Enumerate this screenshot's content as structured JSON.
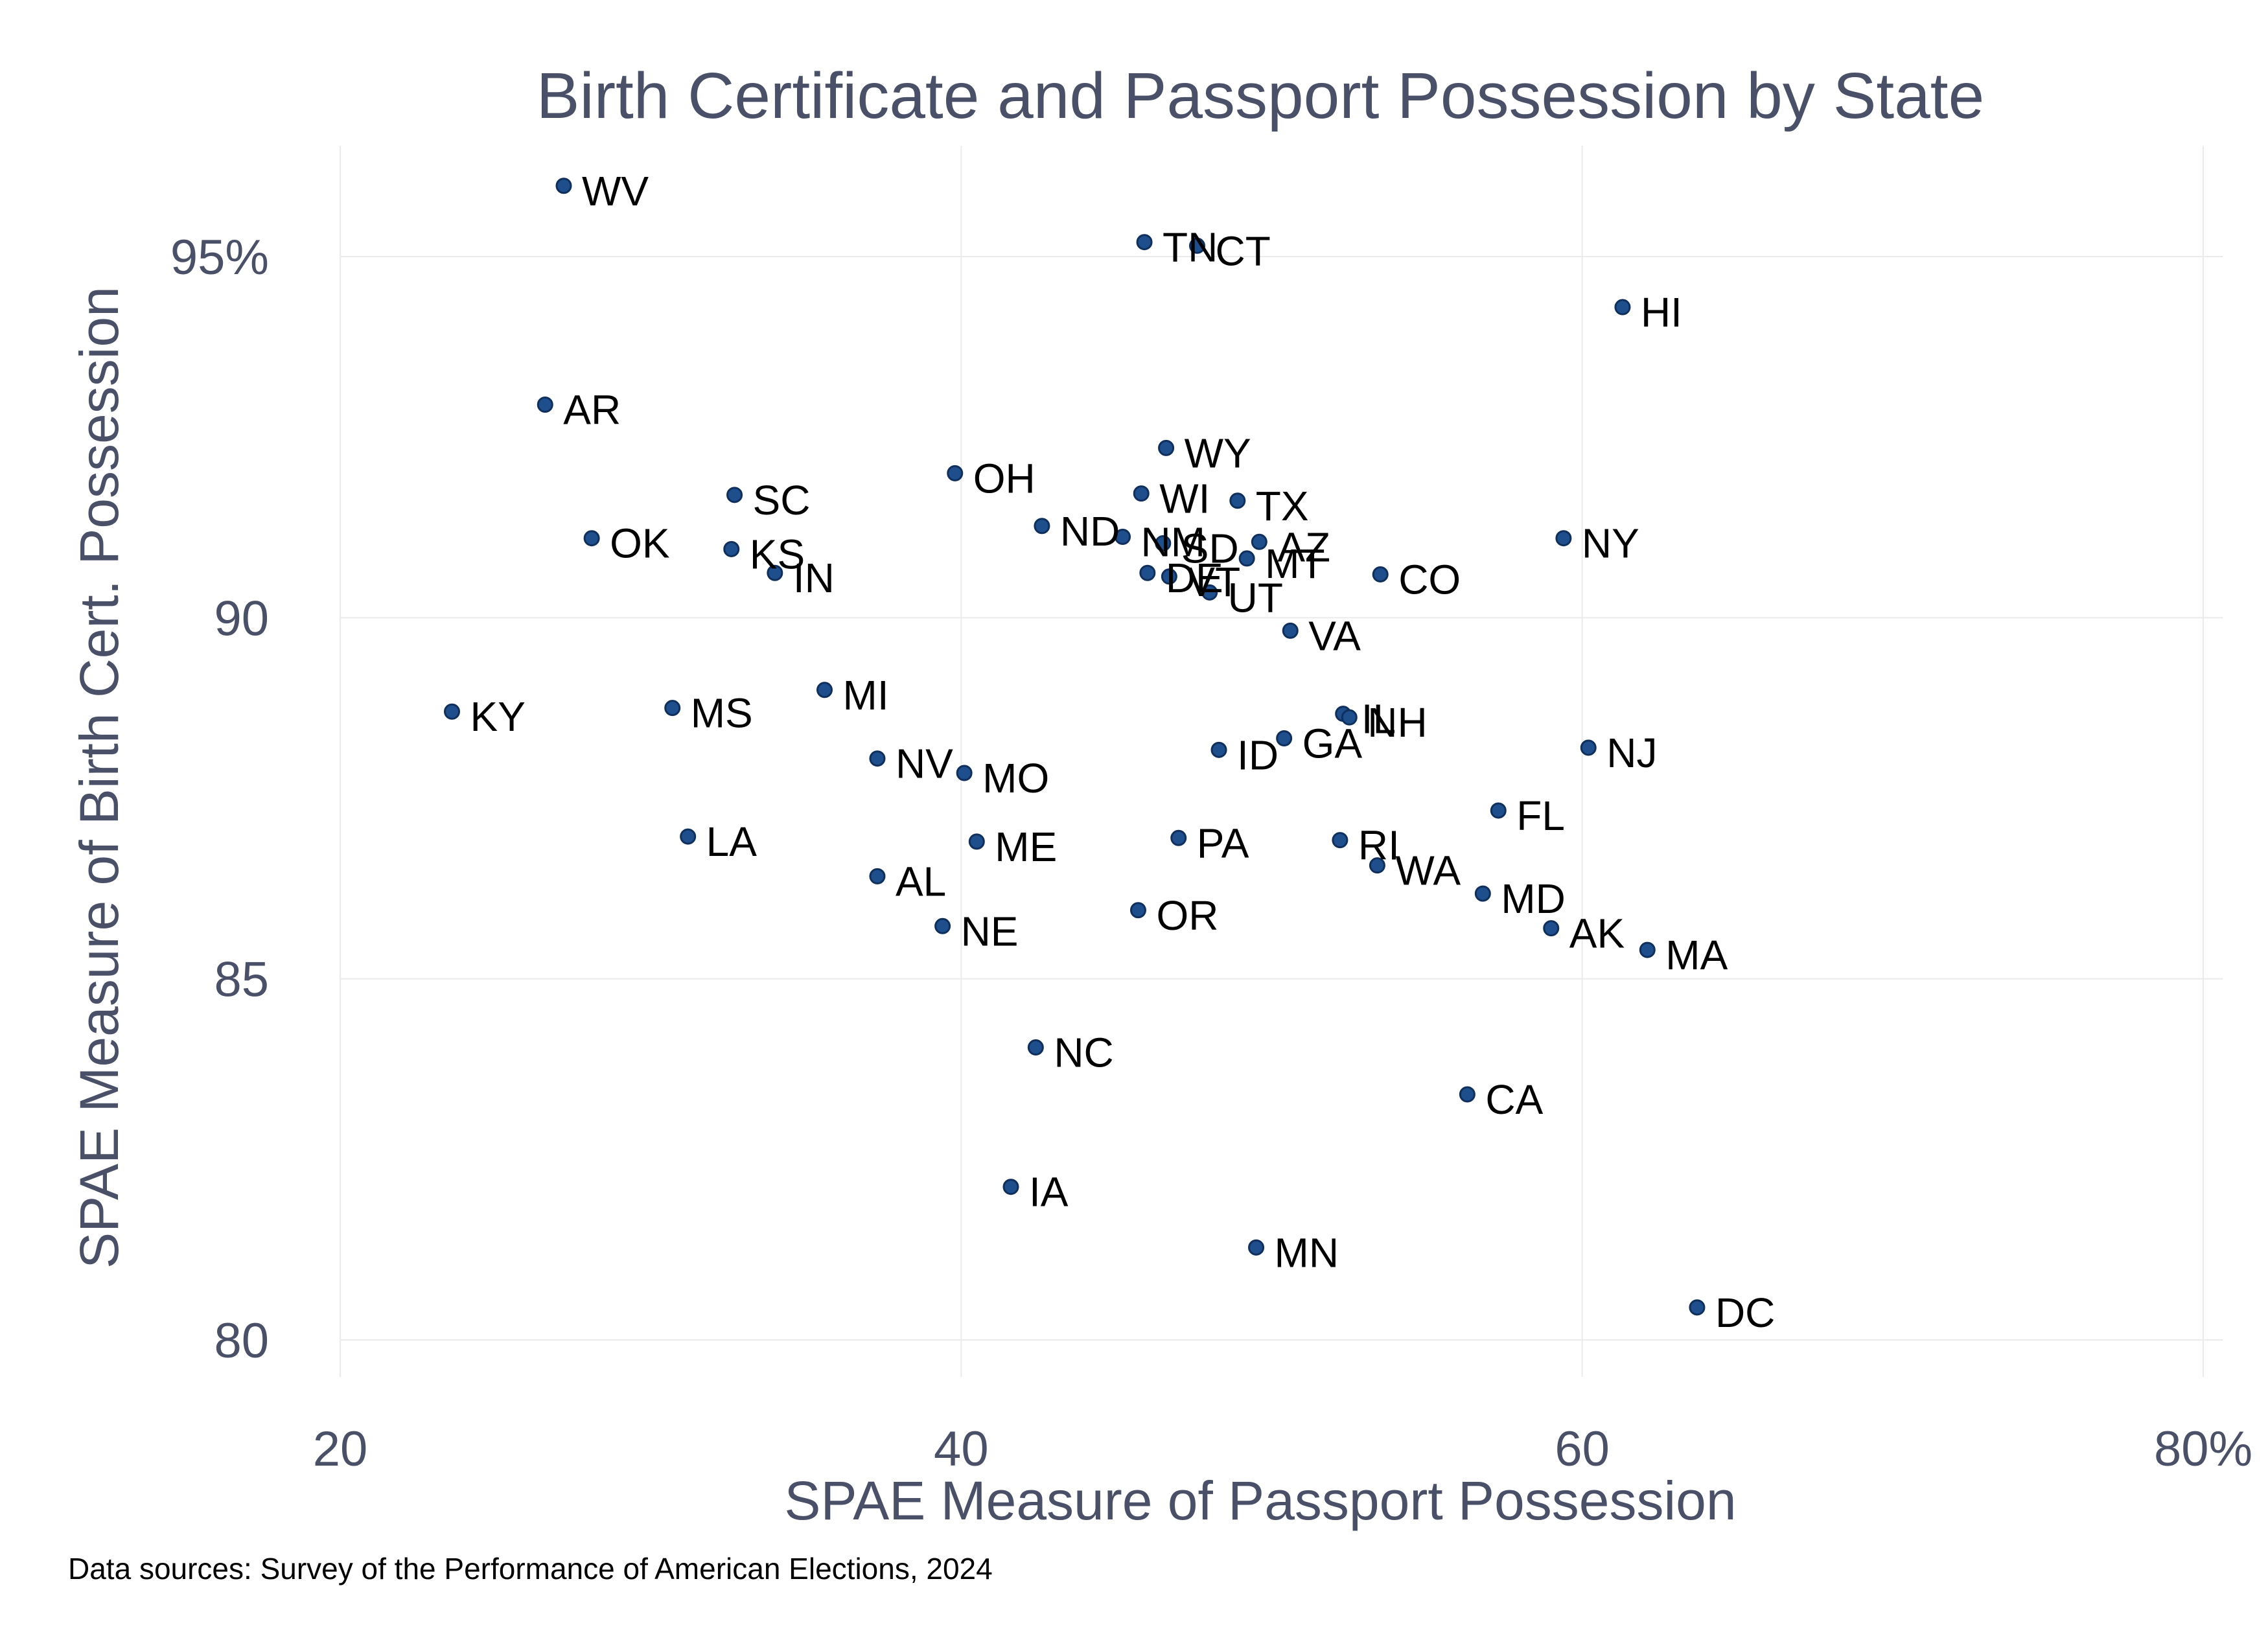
{
  "chart_data": {
    "type": "scatter",
    "title": "Birth Certificate and Passport Possession by State",
    "xlabel": "SPAE Measure of Passport Possession",
    "ylabel": "SPAE Measure of Birth Cert. Possession",
    "source_note": "Data sources: Survey of the Performance of American Elections, 2024",
    "xlim": [
      20,
      80
    ],
    "ylim": [
      80,
      96
    ],
    "x_ticks": [
      20,
      40,
      60,
      80
    ],
    "x_tick_labels": [
      "20",
      "40",
      "60",
      "80%"
    ],
    "y_ticks": [
      80,
      85,
      90,
      95
    ],
    "y_tick_labels": [
      "80",
      "85",
      "90",
      "95%"
    ],
    "grid": true,
    "point_color": "#1f4e8c",
    "text_color": "#4a5068",
    "points": [
      {
        "label": "WV",
        "x": 27.2,
        "y": 95.98
      },
      {
        "label": "TN",
        "x": 45.9,
        "y": 95.2
      },
      {
        "label": "CT",
        "x": 47.6,
        "y": 95.15
      },
      {
        "label": "HI",
        "x": 61.3,
        "y": 94.3
      },
      {
        "label": "AR",
        "x": 26.6,
        "y": 92.95
      },
      {
        "label": "WY",
        "x": 46.6,
        "y": 92.35
      },
      {
        "label": "OH",
        "x": 39.8,
        "y": 92.0
      },
      {
        "label": "SC",
        "x": 32.7,
        "y": 91.7
      },
      {
        "label": "WI",
        "x": 45.8,
        "y": 91.72
      },
      {
        "label": "TX",
        "x": 48.9,
        "y": 91.62
      },
      {
        "label": "ND",
        "x": 42.6,
        "y": 91.27
      },
      {
        "label": "NM",
        "x": 45.2,
        "y": 91.12
      },
      {
        "label": "SD",
        "x": 46.5,
        "y": 91.03
      },
      {
        "label": "AZ",
        "x": 49.6,
        "y": 91.05
      },
      {
        "label": "OK",
        "x": 28.1,
        "y": 91.1
      },
      {
        "label": "NY",
        "x": 59.4,
        "y": 91.1
      },
      {
        "label": "KS",
        "x": 32.6,
        "y": 90.95
      },
      {
        "label": "MT",
        "x": 49.2,
        "y": 90.82
      },
      {
        "label": "IN",
        "x": 34.0,
        "y": 90.62
      },
      {
        "label": "DE",
        "x": 46.0,
        "y": 90.62
      },
      {
        "label": "VT",
        "x": 46.7,
        "y": 90.57
      },
      {
        "label": "CO",
        "x": 53.5,
        "y": 90.6
      },
      {
        "label": "UT",
        "x": 48.0,
        "y": 90.35
      },
      {
        "label": "VA",
        "x": 50.6,
        "y": 89.82
      },
      {
        "label": "MI",
        "x": 35.6,
        "y": 89.0
      },
      {
        "label": "KY",
        "x": 23.6,
        "y": 88.7
      },
      {
        "label": "MS",
        "x": 30.7,
        "y": 88.75
      },
      {
        "label": "IL",
        "x": 52.3,
        "y": 88.67
      },
      {
        "label": "NH",
        "x": 52.5,
        "y": 88.62
      },
      {
        "label": "GA",
        "x": 50.4,
        "y": 88.33
      },
      {
        "label": "ID",
        "x": 48.3,
        "y": 88.17
      },
      {
        "label": "NJ",
        "x": 60.2,
        "y": 88.2
      },
      {
        "label": "NV",
        "x": 37.3,
        "y": 88.05
      },
      {
        "label": "MO",
        "x": 40.1,
        "y": 87.85
      },
      {
        "label": "FL",
        "x": 57.3,
        "y": 87.33
      },
      {
        "label": "LA",
        "x": 31.2,
        "y": 86.97
      },
      {
        "label": "PA",
        "x": 47.0,
        "y": 86.95
      },
      {
        "label": "RI",
        "x": 52.2,
        "y": 86.92
      },
      {
        "label": "ME",
        "x": 40.5,
        "y": 86.9
      },
      {
        "label": "WA",
        "x": 53.4,
        "y": 86.57
      },
      {
        "label": "AL",
        "x": 37.3,
        "y": 86.42
      },
      {
        "label": "MD",
        "x": 56.8,
        "y": 86.18
      },
      {
        "label": "OR",
        "x": 45.7,
        "y": 85.95
      },
      {
        "label": "NE",
        "x": 39.4,
        "y": 85.73
      },
      {
        "label": "AK",
        "x": 59.0,
        "y": 85.7
      },
      {
        "label": "MA",
        "x": 62.1,
        "y": 85.4
      },
      {
        "label": "NC",
        "x": 42.4,
        "y": 84.05
      },
      {
        "label": "CA",
        "x": 56.3,
        "y": 83.4
      },
      {
        "label": "IA",
        "x": 41.6,
        "y": 82.12
      },
      {
        "label": "MN",
        "x": 49.5,
        "y": 81.28
      },
      {
        "label": "DC",
        "x": 63.7,
        "y": 80.45
      }
    ]
  }
}
